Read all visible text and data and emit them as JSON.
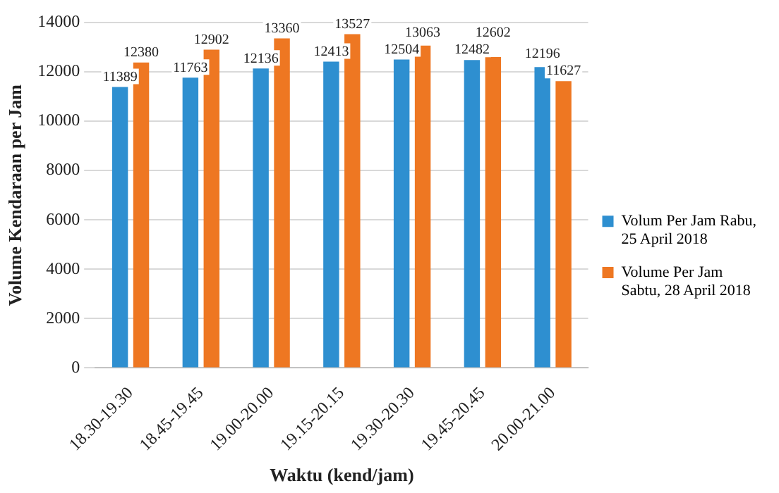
{
  "chart_data": {
    "type": "bar",
    "xlabel": "Waktu (kend/jam)",
    "ylabel": "Volume Kendaraan per Jam",
    "categories": [
      "18.30-19.30",
      "18.45-19.45",
      "19.00-20.00",
      "19.15-20.15",
      "19.30-20.30",
      "19.45-20.45",
      "20.00-21.00"
    ],
    "series": [
      {
        "name": "Volum Per Jam Rabu, 25 April 2018",
        "color": "#2e8fd0",
        "values": [
          11389,
          11763,
          12136,
          12413,
          12504,
          12482,
          12196
        ]
      },
      {
        "name": "Volume Per Jam Sabtu, 28 April 2018",
        "color": "#ee7722",
        "values": [
          12380,
          12902,
          13360,
          13527,
          13063,
          12602,
          11627
        ]
      }
    ],
    "ylim": [
      0,
      14000
    ],
    "yticks": [
      0,
      2000,
      4000,
      6000,
      8000,
      10000,
      12000,
      14000
    ],
    "grid": "y",
    "legend": "right",
    "data_labels": true
  }
}
